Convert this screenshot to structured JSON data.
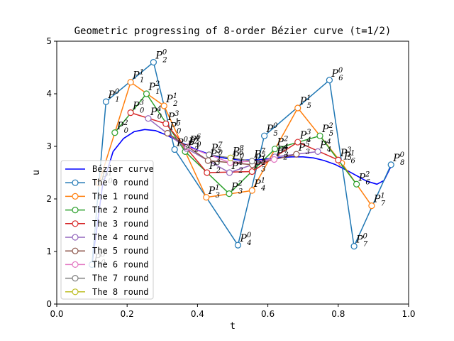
{
  "chart_data": {
    "type": "line",
    "title": "Geometric progressing of 8-order Bézier curve (t=1/2)",
    "xlabel": "t",
    "ylabel": "u",
    "xlim": [
      0.0,
      1.0
    ],
    "ylim": [
      0,
      5
    ],
    "xticks": [
      "0.0",
      "0.2",
      "0.4",
      "0.6",
      "0.8",
      "1.0"
    ],
    "yticks": [
      "0",
      "1",
      "2",
      "3",
      "4",
      "5"
    ],
    "grid": false,
    "legend_position": "lower-left",
    "point_label_letter": "P",
    "curve": {
      "name": "Bézier curve",
      "color": "#0000ff",
      "x": [
        0.1,
        0.13,
        0.16,
        0.19,
        0.22,
        0.25,
        0.28,
        0.31,
        0.34,
        0.37,
        0.4,
        0.43,
        0.46,
        0.49,
        0.52,
        0.55,
        0.58,
        0.61,
        0.64,
        0.67,
        0.7,
        0.73,
        0.76,
        0.79,
        0.82,
        0.85,
        0.88,
        0.91,
        0.93,
        0.95
      ],
      "y": [
        0.75,
        2.25,
        2.9,
        3.15,
        3.28,
        3.32,
        3.3,
        3.22,
        3.12,
        3.02,
        2.93,
        2.86,
        2.8,
        2.76,
        2.74,
        2.74,
        2.75,
        2.77,
        2.79,
        2.8,
        2.8,
        2.78,
        2.73,
        2.66,
        2.56,
        2.45,
        2.34,
        2.28,
        2.35,
        2.62
      ]
    },
    "series": [
      {
        "name": "The 0 round",
        "color": "#1f77b4",
        "labels": [
          "P_0^0",
          "P_1^0",
          "P_2^0",
          "P_3^0",
          "P_4^0",
          "P_5^0",
          "P_6^0",
          "P_7^0",
          "P_8^0"
        ],
        "x": [
          0.1,
          0.14,
          0.275,
          0.335,
          0.515,
          0.59,
          0.775,
          0.845,
          0.95
        ],
        "y": [
          0.75,
          3.85,
          4.6,
          2.94,
          1.12,
          3.2,
          4.26,
          1.1,
          2.65
        ]
      },
      {
        "name": "The 1 round",
        "color": "#ff7f0e",
        "labels": [
          "P_0^1",
          "P_1^1",
          "P_2^1",
          "P_3^1",
          "P_4^1",
          "P_5^1",
          "P_6^1",
          "P_7^1"
        ],
        "x": [
          0.12,
          0.21,
          0.305,
          0.425,
          0.555,
          0.685,
          0.81,
          0.895
        ],
        "y": [
          2.3,
          4.22,
          3.77,
          2.03,
          2.16,
          3.73,
          2.68,
          1.87
        ]
      },
      {
        "name": "The 2 round",
        "color": "#2ca02c",
        "labels": [
          "P_0^2",
          "P_1^2",
          "P_2^2",
          "P_3^2",
          "P_4^2",
          "P_5^2",
          "P_6^2"
        ],
        "x": [
          0.165,
          0.255,
          0.365,
          0.49,
          0.62,
          0.748,
          0.852
        ],
        "y": [
          3.26,
          4.0,
          2.9,
          2.1,
          2.95,
          3.2,
          2.28
        ]
      },
      {
        "name": "The 3 round",
        "color": "#d62728",
        "labels": [
          "P_0^3",
          "P_1^3",
          "P_2^3",
          "P_3^3",
          "P_4^3",
          "P_5^3"
        ],
        "x": [
          0.21,
          0.31,
          0.427,
          0.555,
          0.685,
          0.8
        ],
        "y": [
          3.64,
          3.43,
          2.5,
          2.52,
          3.08,
          2.74
        ]
      },
      {
        "name": "The 4 round",
        "color": "#9467bd",
        "labels": [
          "P_0^4",
          "P_1^4",
          "P_2^4",
          "P_3^4",
          "P_4^4"
        ],
        "x": [
          0.26,
          0.369,
          0.491,
          0.62,
          0.742
        ],
        "y": [
          3.53,
          2.96,
          2.5,
          2.8,
          2.9
        ]
      },
      {
        "name": "The 5 round",
        "color": "#8c564b",
        "labels": [
          "P_0^5",
          "P_1^5",
          "P_2^5",
          "P_3^5"
        ],
        "x": [
          0.315,
          0.43,
          0.556,
          0.681
        ],
        "y": [
          3.25,
          2.73,
          2.65,
          2.85
        ]
      },
      {
        "name": "The 6 round",
        "color": "#e377c2",
        "labels": [
          "P_0^6",
          "P_1^6",
          "P_2^6"
        ],
        "x": [
          0.372,
          0.493,
          0.618
        ],
        "y": [
          2.99,
          2.69,
          2.75
        ]
      },
      {
        "name": "The 7 round",
        "color": "#7f7f7f",
        "labels": [
          "P_0^7",
          "P_1^7"
        ],
        "x": [
          0.433,
          0.555
        ],
        "y": [
          2.84,
          2.72
        ]
      },
      {
        "name": "The 8 round",
        "color": "#bcbd22",
        "labels": [
          "P_0^8"
        ],
        "x": [
          0.494
        ],
        "y": [
          2.78
        ]
      }
    ]
  }
}
